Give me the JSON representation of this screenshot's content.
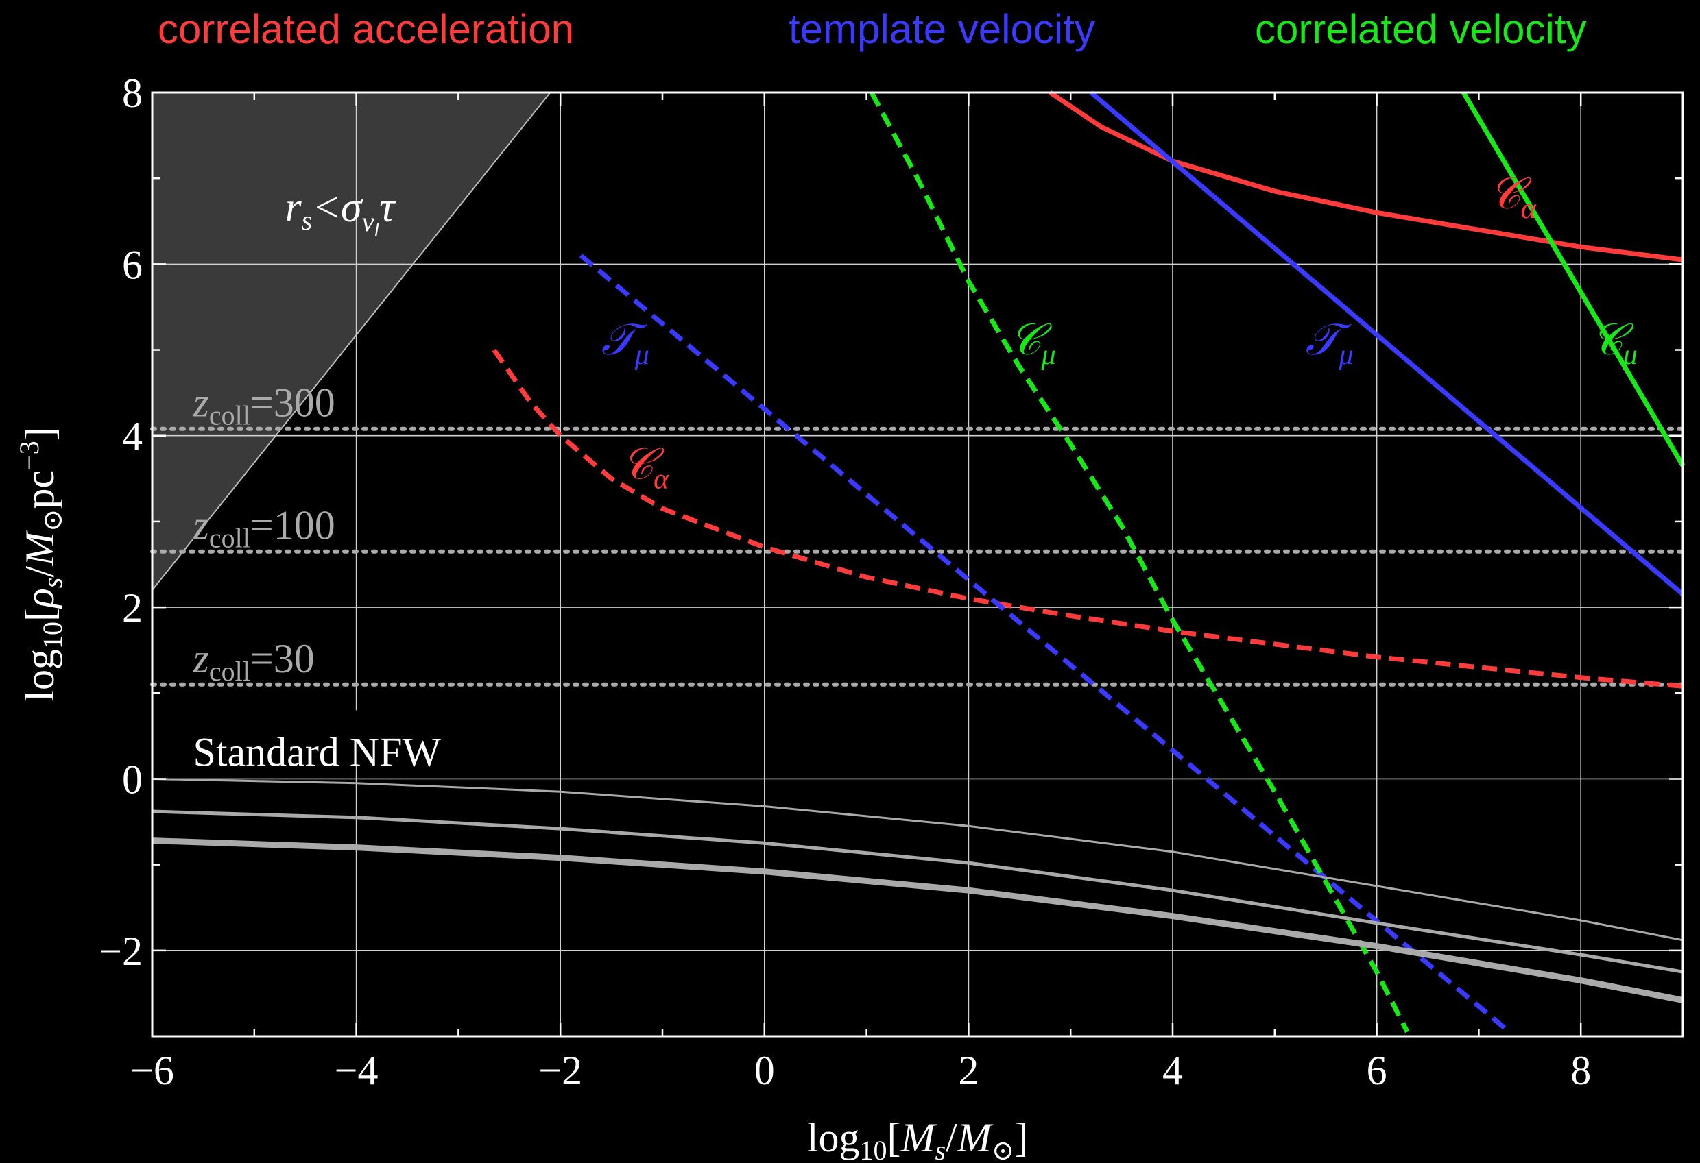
{
  "legend": {
    "acceleration": "correlated acceleration",
    "template": "template velocity",
    "correlated": "correlated velocity"
  },
  "colors": {
    "acceleration": "#ff3b3b",
    "template": "#3a3aff",
    "correlated": "#18e818",
    "collapse": "#aaaaaa",
    "nfw": "#aaaaaa",
    "excluded_region": "#3a3a3a"
  },
  "chart_data": {
    "type": "line",
    "xlabel_base": "log",
    "xlabel_sub": "10",
    "xlabel_rest": "[M",
    "xlabel_ssub": "s",
    "xlabel_slash": "/M",
    "xlabel_sun": "⊙",
    "xlabel_close": "]",
    "ylabel_base": "log",
    "ylabel_sub": "10",
    "ylabel_rest": "[ρ",
    "ylabel_ssub": "s",
    "ylabel_slash": "/M",
    "ylabel_sun": "⊙",
    "ylabel_pc": "pc",
    "ylabel_exp": "−3",
    "ylabel_close": "]",
    "xlim": [
      -6,
      9
    ],
    "ylim": [
      -3,
      8
    ],
    "xticks": [
      -6,
      -4,
      -2,
      0,
      2,
      4,
      6,
      8
    ],
    "xtick_labels": [
      "−6",
      "−4",
      "−2",
      "0",
      "2",
      "4",
      "6",
      "8"
    ],
    "yticks": [
      -2,
      0,
      2,
      4,
      6,
      8
    ],
    "ytick_labels": [
      "−2",
      "0",
      "2",
      "4",
      "6",
      "8"
    ],
    "grid": true,
    "series": [
      {
        "key": "acc_solid",
        "style": "solid",
        "color": "acceleration",
        "points": [
          [
            2.8,
            8.0
          ],
          [
            3.3,
            7.6
          ],
          [
            4.0,
            7.2
          ],
          [
            5.0,
            6.85
          ],
          [
            6.0,
            6.6
          ],
          [
            7.0,
            6.4
          ],
          [
            8.0,
            6.2
          ],
          [
            9.0,
            6.05
          ]
        ]
      },
      {
        "key": "acc_dashed",
        "style": "dashed",
        "color": "acceleration",
        "points": [
          [
            -2.65,
            5.0
          ],
          [
            -2.3,
            4.4
          ],
          [
            -2.0,
            4.0
          ],
          [
            -1.5,
            3.5
          ],
          [
            -1.0,
            3.15
          ],
          [
            0.0,
            2.7
          ],
          [
            1.0,
            2.35
          ],
          [
            2.0,
            2.1
          ],
          [
            3.0,
            1.9
          ],
          [
            4.0,
            1.72
          ],
          [
            5.0,
            1.57
          ],
          [
            6.0,
            1.42
          ],
          [
            7.0,
            1.3
          ],
          [
            8.0,
            1.18
          ],
          [
            9.0,
            1.08
          ]
        ]
      },
      {
        "key": "tmpl_solid",
        "style": "solid",
        "color": "template",
        "points": [
          [
            3.2,
            8.0
          ],
          [
            9.0,
            2.15
          ]
        ]
      },
      {
        "key": "tmpl_dashed",
        "style": "dashed",
        "color": "template",
        "points": [
          [
            -1.8,
            6.1
          ],
          [
            7.3,
            -2.95
          ]
        ]
      },
      {
        "key": "corr_solid",
        "style": "solid",
        "color": "correlated",
        "points": [
          [
            6.85,
            8.0
          ],
          [
            9.0,
            3.65
          ]
        ]
      },
      {
        "key": "corr_dashed",
        "style": "dashed",
        "color": "correlated",
        "points": [
          [
            1.05,
            8.0
          ],
          [
            1.5,
            7.0
          ],
          [
            2.0,
            5.8
          ],
          [
            2.5,
            4.8
          ],
          [
            3.0,
            3.9
          ],
          [
            3.5,
            2.95
          ],
          [
            4.0,
            1.85
          ],
          [
            4.5,
            0.85
          ],
          [
            5.0,
            -0.15
          ],
          [
            5.5,
            -1.2
          ],
          [
            6.0,
            -2.25
          ],
          [
            6.3,
            -2.95
          ]
        ]
      },
      {
        "key": "nfw_top",
        "style": "solid",
        "color": "nfw",
        "width": 3,
        "points": [
          [
            -6,
            0.0
          ],
          [
            -4,
            -0.05
          ],
          [
            -2,
            -0.15
          ],
          [
            0,
            -0.32
          ],
          [
            2,
            -0.55
          ],
          [
            4,
            -0.85
          ],
          [
            6,
            -1.25
          ],
          [
            8,
            -1.65
          ],
          [
            9,
            -1.88
          ]
        ]
      },
      {
        "key": "nfw_mid",
        "style": "solid",
        "color": "nfw",
        "width": 5,
        "points": [
          [
            -6,
            -0.38
          ],
          [
            -4,
            -0.45
          ],
          [
            -2,
            -0.58
          ],
          [
            0,
            -0.75
          ],
          [
            2,
            -0.98
          ],
          [
            4,
            -1.3
          ],
          [
            6,
            -1.68
          ],
          [
            8,
            -2.05
          ],
          [
            9,
            -2.25
          ]
        ]
      },
      {
        "key": "nfw_bot",
        "style": "solid",
        "color": "nfw",
        "width": 9,
        "points": [
          [
            -6,
            -0.72
          ],
          [
            -4,
            -0.8
          ],
          [
            -2,
            -0.92
          ],
          [
            0,
            -1.08
          ],
          [
            2,
            -1.3
          ],
          [
            4,
            -1.6
          ],
          [
            6,
            -1.95
          ],
          [
            8,
            -2.35
          ],
          [
            9,
            -2.58
          ]
        ]
      }
    ],
    "collapse_lines": [
      {
        "y": 4.08,
        "z": "300"
      },
      {
        "y": 2.65,
        "z": "100"
      },
      {
        "y": 1.1,
        "z": "30"
      }
    ],
    "zcoll_prefix": "z",
    "zcoll_sub": "coll",
    "zcoll_eq": "=",
    "excluded_region": {
      "polygon": [
        [
          -6,
          8
        ],
        [
          -2.1,
          8
        ],
        [
          -6,
          2.2
        ]
      ],
      "label_r": "r",
      "label_rsub": "s",
      "label_lt": "<σ",
      "label_vsub": "v",
      "label_lsub": "l",
      "label_tau": "τ"
    },
    "standard_nfw_label": "Standard NFW",
    "annotations": [
      {
        "base": "𝒞",
        "sub": "α",
        "x": 7.1,
        "y": 6.65,
        "color": "acceleration"
      },
      {
        "base": "𝒞",
        "sub": "α",
        "x": -1.4,
        "y": 3.5,
        "color": "acceleration"
      },
      {
        "base": "𝒯",
        "sub": "μ",
        "x": -1.6,
        "y": 4.95,
        "color": "template"
      },
      {
        "base": "𝒯",
        "sub": "μ",
        "x": 5.3,
        "y": 4.95,
        "color": "template"
      },
      {
        "base": "𝒞",
        "sub": "μ",
        "x": 2.4,
        "y": 4.95,
        "color": "correlated"
      },
      {
        "base": "𝒞",
        "sub": "μ",
        "x": 8.1,
        "y": 4.95,
        "color": "correlated"
      }
    ]
  }
}
